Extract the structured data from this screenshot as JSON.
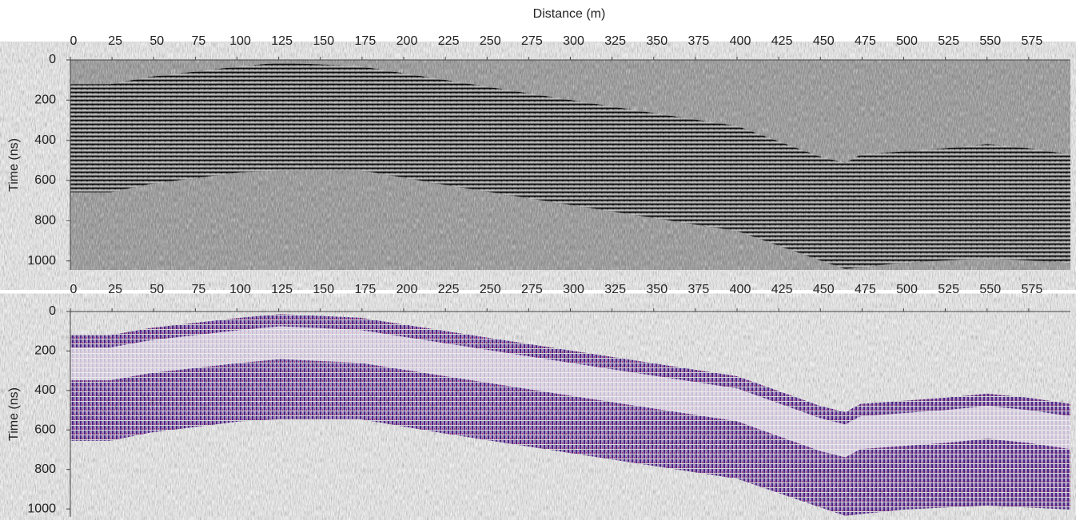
{
  "chart_data": [
    {
      "type": "radargram",
      "xlabel": "Distance (m)",
      "ylabel": "Time (ns)",
      "xlim": [
        0,
        600
      ],
      "xticks": [
        0,
        25,
        50,
        75,
        100,
        125,
        150,
        175,
        200,
        225,
        250,
        275,
        300,
        325,
        350,
        375,
        400,
        425,
        450,
        475,
        500,
        525,
        550,
        575
      ],
      "ylim": [
        0,
        1045
      ],
      "yticks": [
        0,
        200,
        400,
        600,
        800,
        1000
      ],
      "colormap": "gray"
    },
    {
      "type": "radargram",
      "ylabel": "Time (ns)",
      "xlim": [
        0,
        600
      ],
      "xticks": [
        0,
        25,
        50,
        75,
        100,
        125,
        150,
        175,
        200,
        225,
        250,
        275,
        300,
        325,
        350,
        375,
        400,
        425,
        450,
        475,
        500,
        525,
        550,
        575
      ],
      "ylim": [
        0,
        1040
      ],
      "yticks": [
        0,
        200,
        400,
        600,
        800,
        1000
      ],
      "colormap": "purple"
    }
  ]
}
